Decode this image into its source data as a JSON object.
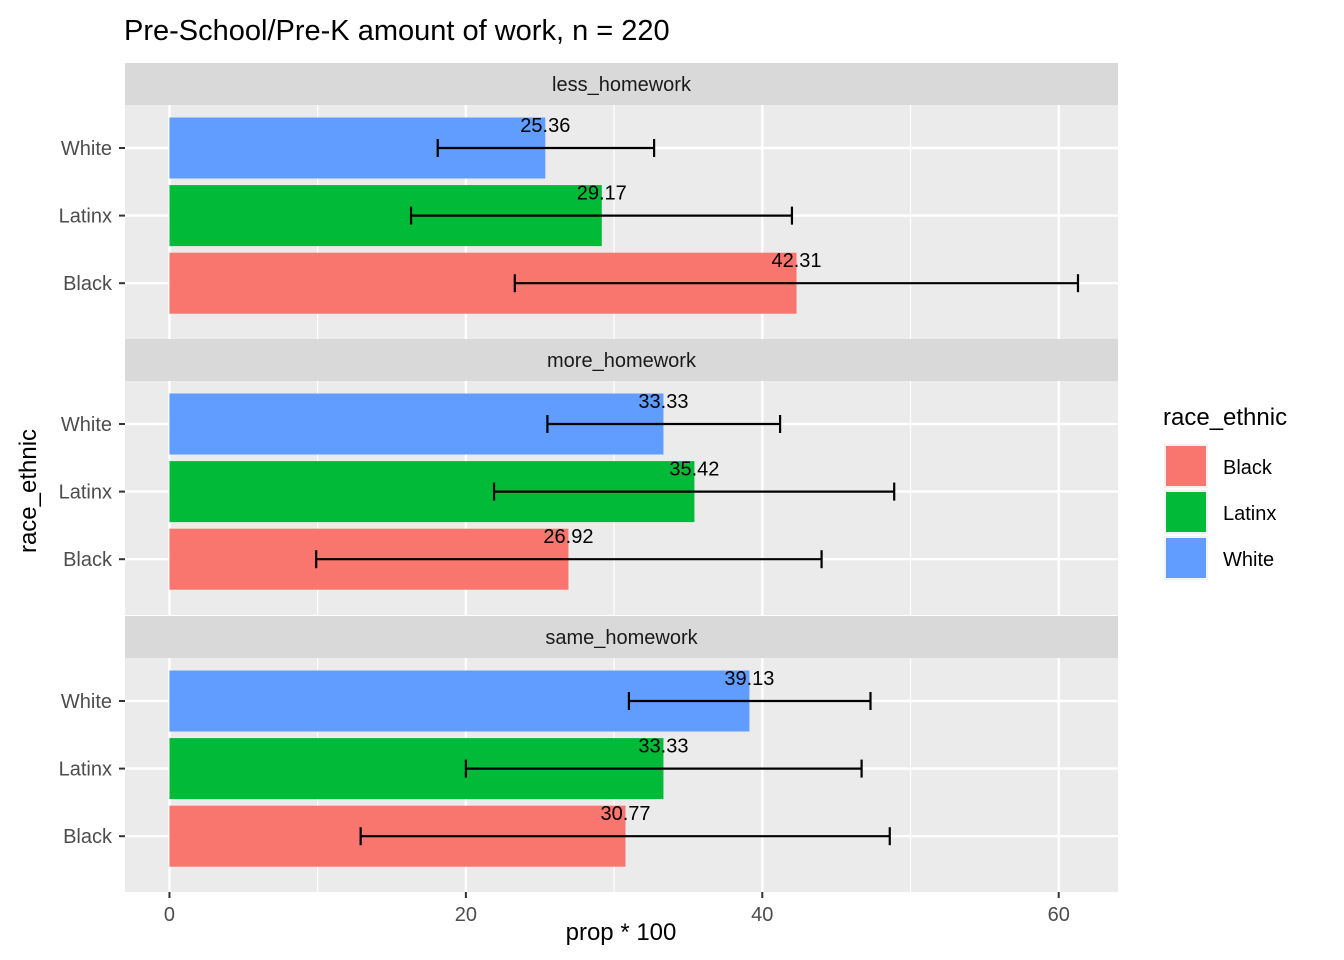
{
  "chart_data": {
    "type": "bar",
    "orientation": "horizontal",
    "title": "Pre-School/Pre-K amount of work, n = 220",
    "xlabel": "prop * 100",
    "ylabel": "race_ethnic",
    "xlim": [
      -3,
      64
    ],
    "x_ticks": [
      0,
      20,
      40,
      60
    ],
    "grid": true,
    "legend": {
      "title": "race_ethnic",
      "placement": "right",
      "entries": [
        {
          "name": "Black",
          "color": "#F8766D"
        },
        {
          "name": "Latinx",
          "color": "#00BA38"
        },
        {
          "name": "White",
          "color": "#619CFF"
        }
      ]
    },
    "categories": [
      "White",
      "Latinx",
      "Black"
    ],
    "panels": [
      {
        "name": "less_homework",
        "bars": [
          {
            "category": "White",
            "value": 25.36,
            "label": "25.36",
            "err_low": 18.1,
            "err_high": 32.7
          },
          {
            "category": "Latinx",
            "value": 29.17,
            "label": "29.17",
            "err_low": 16.3,
            "err_high": 42.0
          },
          {
            "category": "Black",
            "value": 42.31,
            "label": "42.31",
            "err_low": 23.3,
            "err_high": 61.3
          }
        ]
      },
      {
        "name": "more_homework",
        "bars": [
          {
            "category": "White",
            "value": 33.33,
            "label": "33.33",
            "err_low": 25.5,
            "err_high": 41.2
          },
          {
            "category": "Latinx",
            "value": 35.42,
            "label": "35.42",
            "err_low": 21.9,
            "err_high": 48.9
          },
          {
            "category": "Black",
            "value": 26.92,
            "label": "26.92",
            "err_low": 9.9,
            "err_high": 44.0
          }
        ]
      },
      {
        "name": "same_homework",
        "bars": [
          {
            "category": "White",
            "value": 39.13,
            "label": "39.13",
            "err_low": 31.0,
            "err_high": 47.3
          },
          {
            "category": "Latinx",
            "value": 33.33,
            "label": "33.33",
            "err_low": 20.0,
            "err_high": 46.7
          },
          {
            "category": "Black",
            "value": 30.77,
            "label": "30.77",
            "err_low": 12.9,
            "err_high": 48.6
          }
        ]
      }
    ]
  }
}
